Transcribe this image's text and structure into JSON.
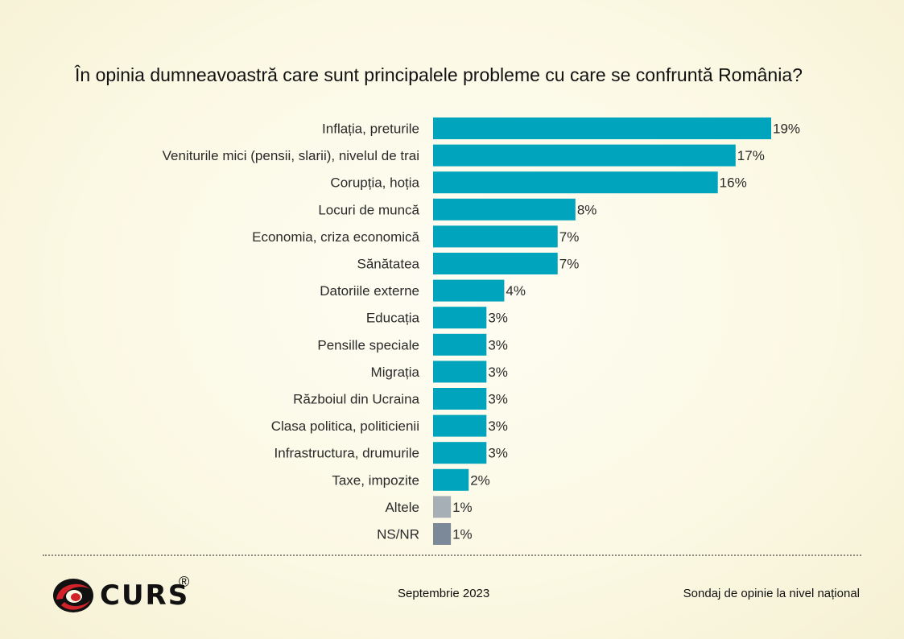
{
  "chart_data": {
    "type": "bar",
    "orientation": "horizontal",
    "title": "În opinia dumneavoastră care sunt principalele probleme cu care se confruntă România?",
    "categories": [
      "Inflația, preturile",
      "Veniturile mici (pensii, slarii), nivelul de trai",
      "Corupția, hoția",
      "Locuri de muncă",
      "Economia, criza economică",
      "Sănătatea",
      "Datoriile externe",
      "Educația",
      "Pensille speciale",
      "Migrația",
      "Războiul din Ucraina",
      "Clasa politica, politicienii",
      "Infrastructura, drumurile",
      "Taxe, impozite",
      "Altele",
      "NS/NR"
    ],
    "values": [
      19,
      17,
      16,
      8,
      7,
      7,
      4,
      3,
      3,
      3,
      3,
      3,
      3,
      2,
      1,
      1
    ],
    "value_labels": [
      "19%",
      "17%",
      "16%",
      "8%",
      "7%",
      "7%",
      "4%",
      "3%",
      "3%",
      "3%",
      "3%",
      "3%",
      "3%",
      "2%",
      "1%",
      "1%"
    ],
    "bar_colors": [
      "#00a4bc",
      "#00a4bc",
      "#00a4bc",
      "#00a4bc",
      "#00a4bc",
      "#00a4bc",
      "#00a4bc",
      "#00a4bc",
      "#00a4bc",
      "#00a4bc",
      "#00a4bc",
      "#00a4bc",
      "#00a4bc",
      "#00a4bc",
      "#a7afb6",
      "#7b8999"
    ],
    "xlim": [
      0,
      19
    ],
    "grid": false,
    "legend": "none"
  },
  "footer": {
    "logo_text": "CURS",
    "logo_mark": "®",
    "date": "Septembrie 2023",
    "source": "Sondaj de opinie la nivel național"
  },
  "colors": {
    "background": "#fbf8e3",
    "bar": "#00a4bc",
    "other": "#a7afb6",
    "nsnr": "#7b8999",
    "logo_red": "#d2232a"
  }
}
